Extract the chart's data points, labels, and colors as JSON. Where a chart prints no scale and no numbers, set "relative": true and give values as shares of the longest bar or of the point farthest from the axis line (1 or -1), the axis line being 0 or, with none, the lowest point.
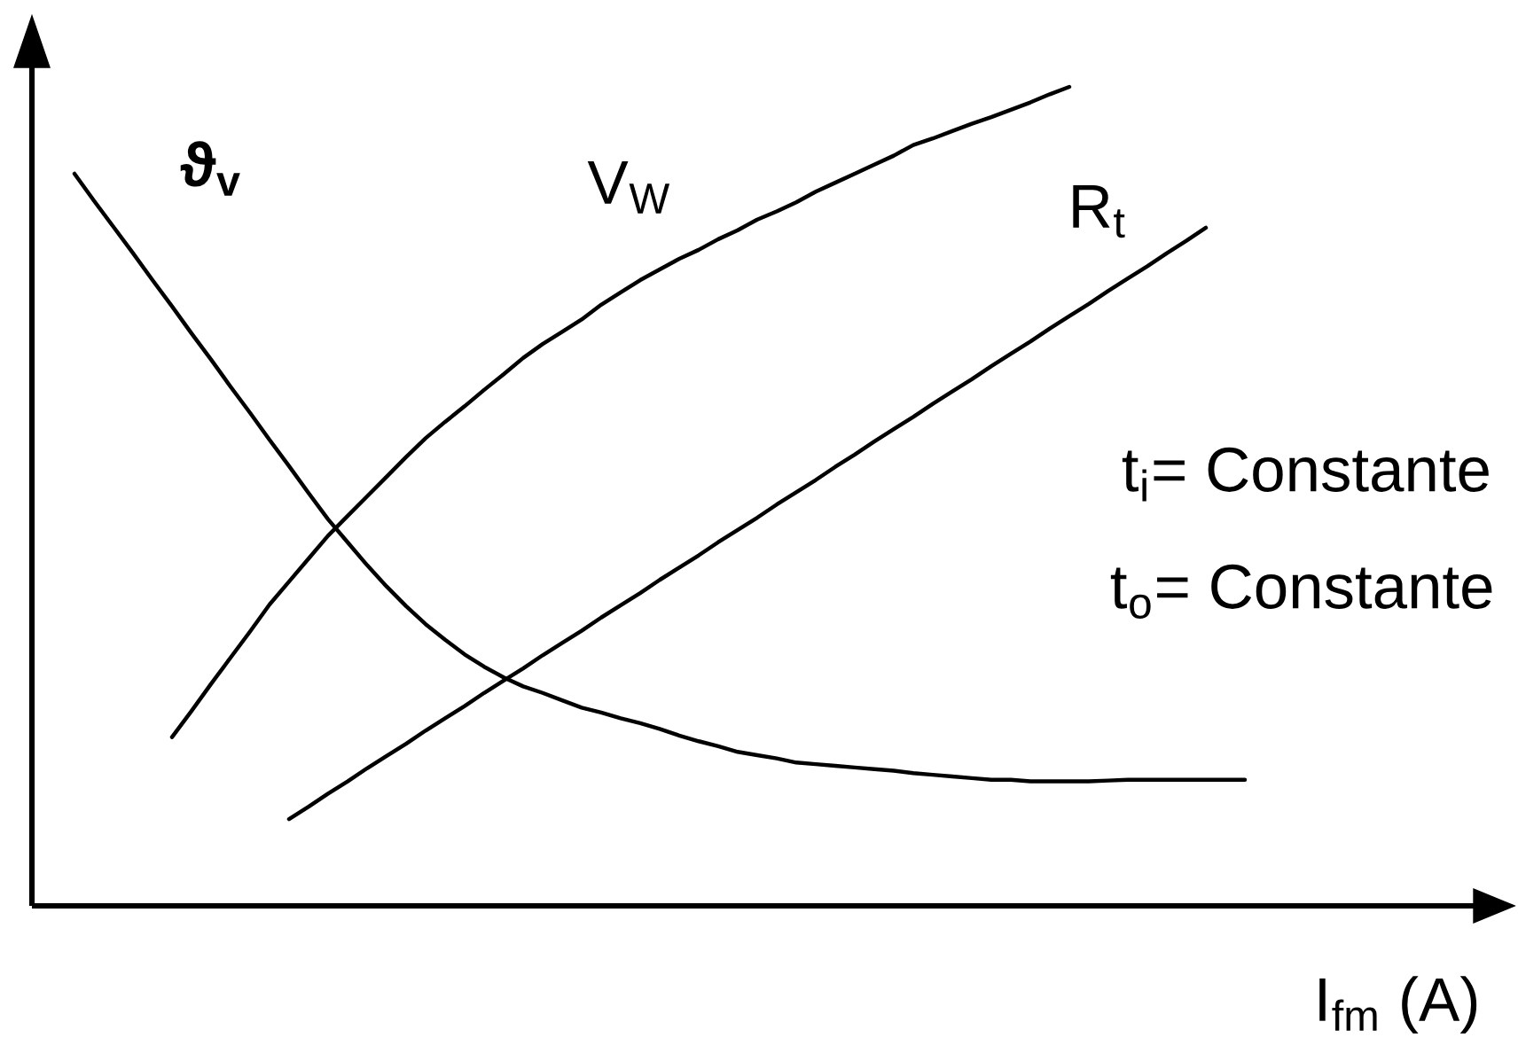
{
  "chart_data": {
    "type": "line",
    "relative": true,
    "xlabel": "I$_{fm}$ (A)",
    "annotations": [
      "t$_{i}$= Constante",
      "t$_{o}$= Constante"
    ],
    "categories": [
      null,
      null,
      null,
      null,
      null,
      null,
      null,
      null,
      null,
      null,
      null,
      null,
      null,
      null,
      null,
      null,
      null,
      null,
      null,
      null,
      null,
      null,
      null,
      null,
      null,
      null,
      null,
      null,
      null,
      null,
      null,
      null,
      null,
      null,
      null,
      null,
      null,
      null,
      null,
      null,
      null,
      null,
      null,
      null,
      null,
      null,
      null,
      null,
      null,
      null,
      null,
      null,
      null,
      null,
      null,
      null,
      null,
      null,
      null,
      null,
      null
    ],
    "series": [
      {
        "name": "ϑ$_{v}$",
        "color": "#000000",
        "values": [
          0.894,
          0.861,
          0.829,
          0.797,
          0.764,
          0.732,
          0.699,
          0.667,
          0.634,
          0.602,
          0.569,
          0.537,
          0.504,
          0.472,
          0.444,
          0.416,
          0.39,
          0.366,
          0.344,
          0.325,
          0.307,
          0.292,
          0.279,
          0.268,
          0.26,
          0.251,
          0.242,
          0.236,
          0.229,
          0.223,
          0.216,
          0.208,
          0.201,
          0.195,
          0.188,
          0.184,
          0.18,
          0.175,
          0.173,
          0.171,
          0.169,
          0.167,
          0.165,
          0.162,
          0.16,
          0.158,
          0.156,
          0.154,
          0.154,
          0.152,
          0.152,
          0.152,
          0.152,
          0.153,
          0.154,
          0.154,
          0.154,
          0.154,
          0.154,
          0.154,
          0.154
        ]
      },
      {
        "name": "V$_{W}$",
        "color": "#000000",
        "values": [
          null,
          null,
          null,
          null,
          null,
          0.206,
          0.238,
          0.271,
          0.303,
          0.335,
          0.368,
          0.396,
          0.424,
          0.452,
          0.476,
          0.5,
          0.524,
          0.548,
          0.571,
          0.591,
          0.61,
          0.63,
          0.649,
          0.669,
          0.686,
          0.701,
          0.716,
          0.734,
          0.749,
          0.764,
          0.777,
          0.79,
          0.801,
          0.814,
          0.825,
          0.838,
          0.848,
          0.859,
          0.872,
          0.883,
          0.894,
          0.905,
          0.916,
          0.929,
          0.937,
          0.946,
          0.955,
          0.963,
          0.972,
          0.981,
          0.991,
          1.0,
          null,
          null,
          null,
          null,
          null,
          null,
          null,
          null,
          null
        ]
      },
      {
        "name": "R$_{t}$",
        "color": "#000000",
        "values": [
          null,
          null,
          null,
          null,
          null,
          null,
          null,
          null,
          null,
          null,
          null,
          0.106,
          0.121,
          0.137,
          0.152,
          0.168,
          0.183,
          0.198,
          0.214,
          0.229,
          0.244,
          0.26,
          0.275,
          0.29,
          0.306,
          0.321,
          0.336,
          0.352,
          0.367,
          0.382,
          0.398,
          0.413,
          0.428,
          0.444,
          0.459,
          0.474,
          0.49,
          0.505,
          0.52,
          0.536,
          0.551,
          0.567,
          0.582,
          0.597,
          0.613,
          0.628,
          0.643,
          0.659,
          0.674,
          0.689,
          0.705,
          0.72,
          0.735,
          0.751,
          0.766,
          0.781,
          0.797,
          0.812,
          0.828,
          null,
          null
        ]
      }
    ]
  }
}
